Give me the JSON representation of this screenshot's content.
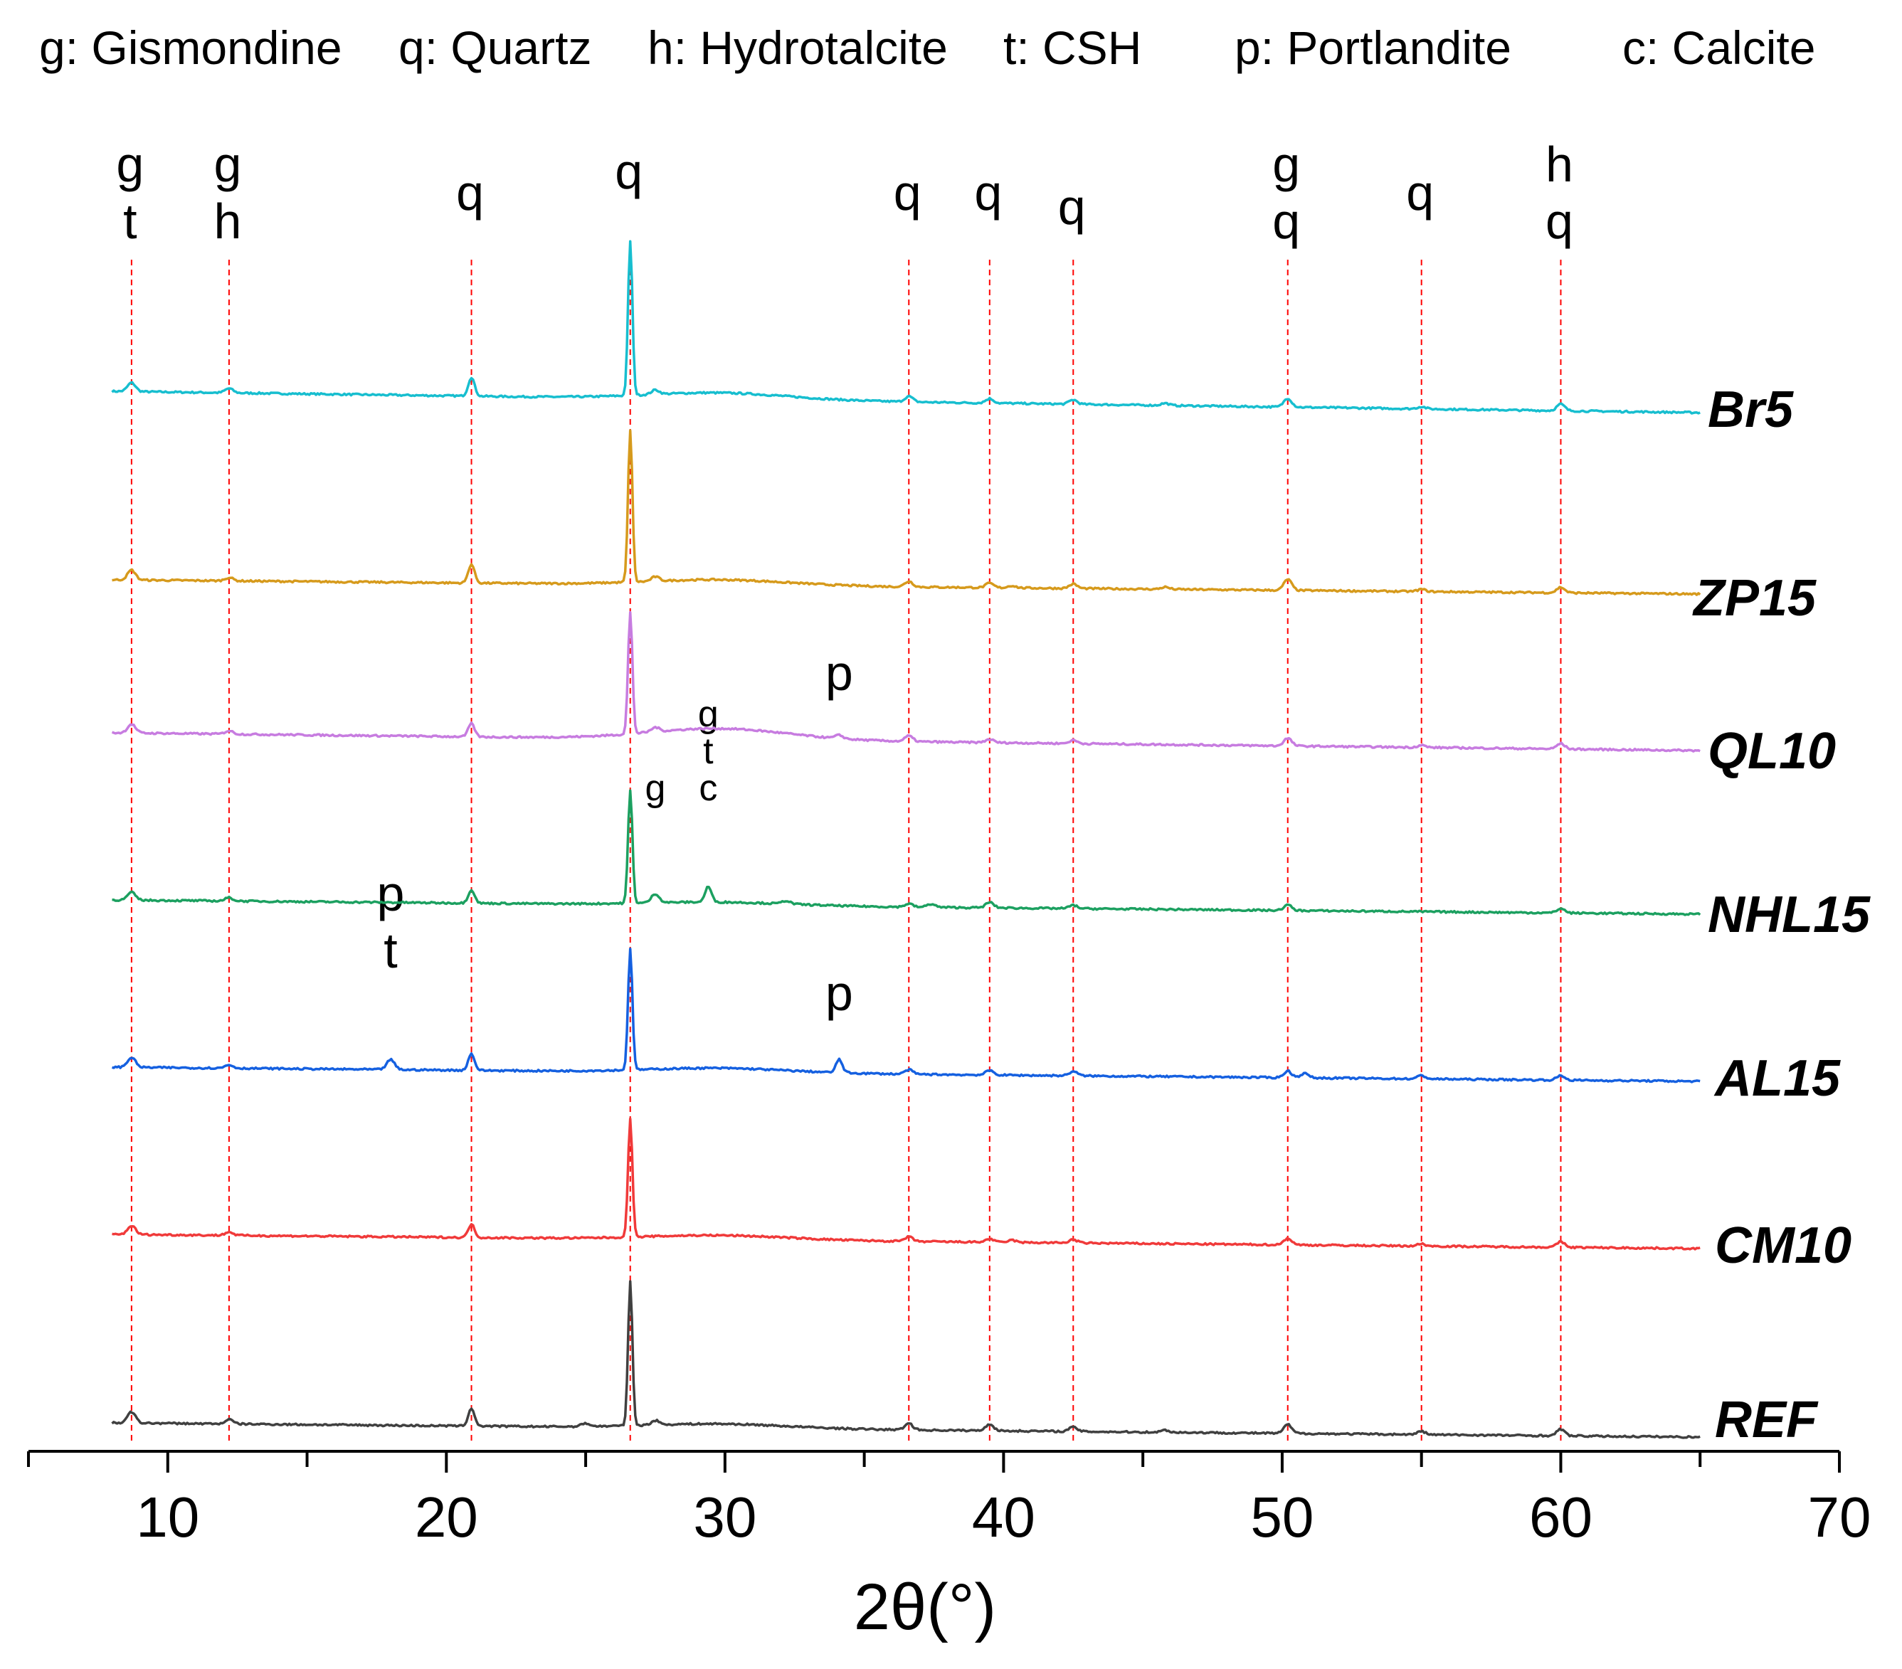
{
  "chart_data": {
    "type": "line",
    "title": "",
    "xlabel": "2θ(°)",
    "ylabel": "",
    "xlim": [
      5,
      70
    ],
    "xticks": [
      "10",
      "20",
      "30",
      "40",
      "50",
      "60",
      "70"
    ],
    "grid": false,
    "legend_text": [
      "g: Gismondine",
      "q: Quartz",
      "h: Hydrotalcite",
      "t: CSH",
      "p: Portlandite",
      "c: Calcite"
    ],
    "reference_lines": [
      {
        "x": 8.7,
        "labels": [
          "g",
          "t"
        ]
      },
      {
        "x": 12.2,
        "labels": [
          "g",
          "h"
        ]
      },
      {
        "x": 20.9,
        "labels": [
          "q"
        ]
      },
      {
        "x": 26.6,
        "labels": [
          "q"
        ]
      },
      {
        "x": 36.6,
        "labels": [
          "q"
        ]
      },
      {
        "x": 39.5,
        "labels": [
          "q"
        ]
      },
      {
        "x": 42.5,
        "labels": [
          "q"
        ]
      },
      {
        "x": 50.2,
        "labels": [
          "g",
          "q"
        ]
      },
      {
        "x": 55.0,
        "labels": [
          "q"
        ]
      },
      {
        "x": 60.0,
        "labels": [
          "h",
          "q"
        ]
      }
    ],
    "extra_annotations": [
      {
        "series": "QL10",
        "x": 34.1,
        "labels": [
          "p"
        ]
      },
      {
        "series": "NHL15",
        "x": 27.5,
        "labels": [
          "g"
        ]
      },
      {
        "series": "NHL15",
        "x": 29.4,
        "labels": [
          "g",
          "t",
          "c"
        ]
      },
      {
        "series": "AL15",
        "x": 18.0,
        "labels": [
          "p",
          "t"
        ]
      },
      {
        "series": "AL15",
        "x": 34.1,
        "labels": [
          "p"
        ]
      }
    ],
    "series": [
      {
        "name": "Br5",
        "color": "#17becf",
        "label_color": "#ff3fa4",
        "peaks": [
          [
            8.7,
            8
          ],
          [
            12.2,
            4
          ],
          [
            20.9,
            17
          ],
          [
            26.6,
            140
          ],
          [
            27.5,
            4
          ],
          [
            36.6,
            5
          ],
          [
            39.5,
            4
          ],
          [
            42.5,
            4
          ],
          [
            45.8,
            2
          ],
          [
            50.2,
            8
          ],
          [
            55.0,
            2
          ],
          [
            60.0,
            6
          ]
        ],
        "hump": 6
      },
      {
        "name": "ZP15",
        "color": "#d69a1c",
        "label_color": "#ff7f27",
        "peaks": [
          [
            8.7,
            9
          ],
          [
            12.2,
            3
          ],
          [
            20.9,
            17
          ],
          [
            26.6,
            138
          ],
          [
            27.5,
            4
          ],
          [
            36.6,
            5
          ],
          [
            39.5,
            4
          ],
          [
            40.3,
            2
          ],
          [
            42.5,
            4
          ],
          [
            45.8,
            2
          ],
          [
            50.2,
            10
          ],
          [
            55.0,
            2
          ],
          [
            60.0,
            5
          ]
        ],
        "hump": 5
      },
      {
        "name": "QL10",
        "color": "#c77ce0",
        "label_color": "#c77ce0",
        "peaks": [
          [
            8.7,
            8
          ],
          [
            12.2,
            3
          ],
          [
            20.9,
            12
          ],
          [
            26.6,
            110
          ],
          [
            27.5,
            4
          ],
          [
            34.1,
            3
          ],
          [
            36.6,
            5
          ],
          [
            39.5,
            3
          ],
          [
            42.5,
            3
          ],
          [
            50.2,
            7
          ],
          [
            55.0,
            2
          ],
          [
            60.0,
            5
          ]
        ],
        "hump": 10
      },
      {
        "name": "NHL15",
        "color": "#1ca060",
        "label_color": "#ff0000",
        "peaks": [
          [
            8.7,
            7
          ],
          [
            12.2,
            3
          ],
          [
            20.9,
            12
          ],
          [
            26.6,
            102
          ],
          [
            27.5,
            8
          ],
          [
            29.4,
            14
          ],
          [
            32.2,
            3
          ],
          [
            36.6,
            3
          ],
          [
            37.4,
            3
          ],
          [
            39.5,
            5
          ],
          [
            42.5,
            3
          ],
          [
            50.2,
            5
          ],
          [
            60.0,
            4
          ]
        ],
        "hump": 3
      },
      {
        "name": "AL15",
        "color": "#1560e0",
        "label_color": "#1010ff",
        "peaks": [
          [
            8.7,
            9
          ],
          [
            12.2,
            3
          ],
          [
            18.0,
            9
          ],
          [
            20.9,
            15
          ],
          [
            26.6,
            110
          ],
          [
            34.1,
            12
          ],
          [
            36.6,
            4
          ],
          [
            39.5,
            4
          ],
          [
            42.5,
            4
          ],
          [
            50.2,
            6
          ],
          [
            50.8,
            4
          ],
          [
            55.0,
            3
          ],
          [
            60.0,
            4
          ]
        ],
        "hump": 4
      },
      {
        "name": "CM10",
        "color": "#f03a3a",
        "label_color": "#ff0000",
        "peaks": [
          [
            8.7,
            8
          ],
          [
            12.2,
            3
          ],
          [
            20.9,
            12
          ],
          [
            26.6,
            108
          ],
          [
            36.6,
            4
          ],
          [
            39.5,
            3
          ],
          [
            40.3,
            2
          ],
          [
            42.5,
            3
          ],
          [
            50.2,
            6
          ],
          [
            55.0,
            2
          ],
          [
            60.0,
            5
          ]
        ],
        "hump": 4
      },
      {
        "name": "REF",
        "color": "#404040",
        "label_color": "#111111",
        "peaks": [
          [
            8.7,
            10
          ],
          [
            12.2,
            4
          ],
          [
            20.9,
            16
          ],
          [
            25.0,
            3
          ],
          [
            26.6,
            130
          ],
          [
            27.5,
            4
          ],
          [
            36.6,
            6
          ],
          [
            39.5,
            6
          ],
          [
            42.5,
            4
          ],
          [
            45.8,
            2
          ],
          [
            50.2,
            8
          ],
          [
            55.0,
            3
          ],
          [
            60.0,
            6
          ]
        ],
        "hump": 4
      }
    ]
  }
}
